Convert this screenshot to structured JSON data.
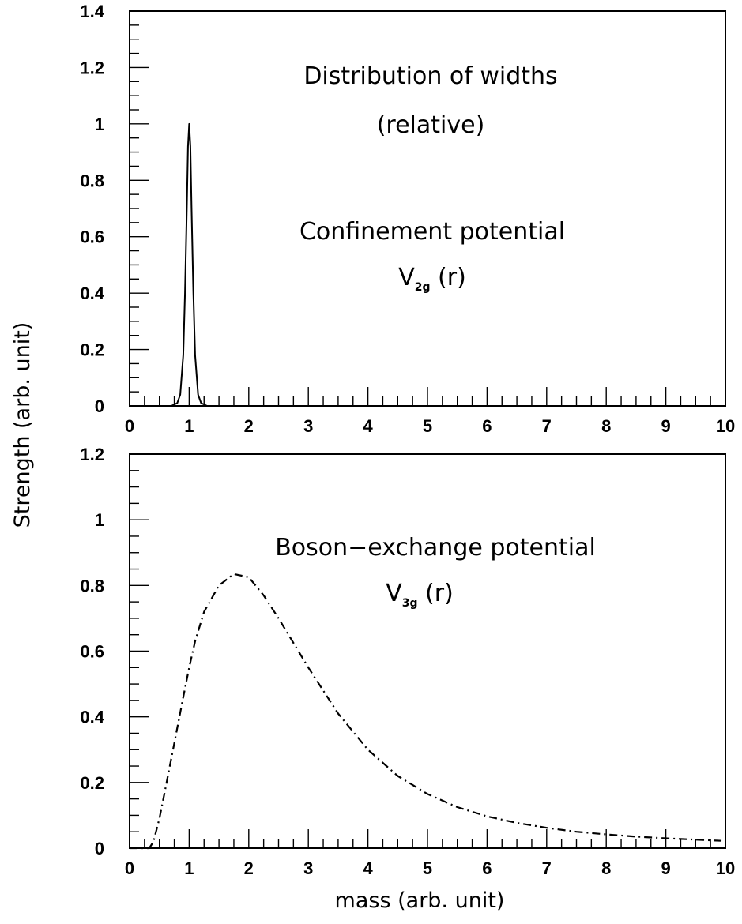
{
  "chart_data": [
    {
      "type": "line",
      "annotations": {
        "title_line1": "Distribution of widths",
        "title_line2": "(relative)",
        "label_line1": "Confinement potential",
        "formula_main": "V",
        "formula_sub": "2g",
        "formula_tail": " (r)"
      },
      "xlim": [
        0,
        10
      ],
      "ylim": [
        0,
        1.4
      ],
      "x_ticks": [
        "0",
        "1",
        "2",
        "3",
        "4",
        "5",
        "6",
        "7",
        "8",
        "9",
        "10"
      ],
      "y_ticks": [
        "0",
        "0.2",
        "0.4",
        "0.6",
        "0.8",
        "1",
        "1.2",
        "1.4"
      ],
      "series": [
        {
          "style": "solid",
          "x": [
            0.0,
            0.7,
            0.8,
            0.85,
            0.9,
            0.93,
            0.96,
            0.98,
            1.0,
            1.02,
            1.04,
            1.07,
            1.1,
            1.15,
            1.2,
            1.3,
            10.0
          ],
          "y": [
            0.0,
            0.0,
            0.01,
            0.04,
            0.18,
            0.4,
            0.7,
            0.92,
            1.0,
            0.92,
            0.7,
            0.4,
            0.18,
            0.04,
            0.01,
            0.0,
            0.0
          ]
        }
      ]
    },
    {
      "type": "line",
      "annotations": {
        "label_line1": "Boson−exchange potential",
        "formula_main": "V",
        "formula_sub": "3g",
        "formula_tail": " (r)"
      },
      "xlim": [
        0,
        10
      ],
      "ylim": [
        0,
        1.2
      ],
      "x_ticks": [
        "0",
        "1",
        "2",
        "3",
        "4",
        "5",
        "6",
        "7",
        "8",
        "9",
        "10"
      ],
      "y_ticks": [
        "0",
        "0.2",
        "0.4",
        "0.6",
        "0.8",
        "1",
        "1.2"
      ],
      "xlabel": "mass (arb. unit)",
      "series": [
        {
          "style": "dashdot",
          "x": [
            0.0,
            0.33,
            0.4,
            0.5,
            0.6,
            0.75,
            0.9,
            1.0,
            1.1,
            1.25,
            1.5,
            1.75,
            2.0,
            2.25,
            2.5,
            3.0,
            3.5,
            4.0,
            4.5,
            5.0,
            5.5,
            6.0,
            6.5,
            7.0,
            7.5,
            8.0,
            8.5,
            9.0,
            9.5,
            10.0
          ],
          "y": [
            0.0,
            0.0,
            0.02,
            0.09,
            0.18,
            0.32,
            0.46,
            0.55,
            0.63,
            0.72,
            0.8,
            0.835,
            0.825,
            0.77,
            0.7,
            0.55,
            0.41,
            0.3,
            0.22,
            0.165,
            0.125,
            0.097,
            0.077,
            0.062,
            0.05,
            0.042,
            0.035,
            0.03,
            0.026,
            0.022
          ]
        }
      ]
    }
  ],
  "shared_ylabel": "Strength (arb. unit)"
}
